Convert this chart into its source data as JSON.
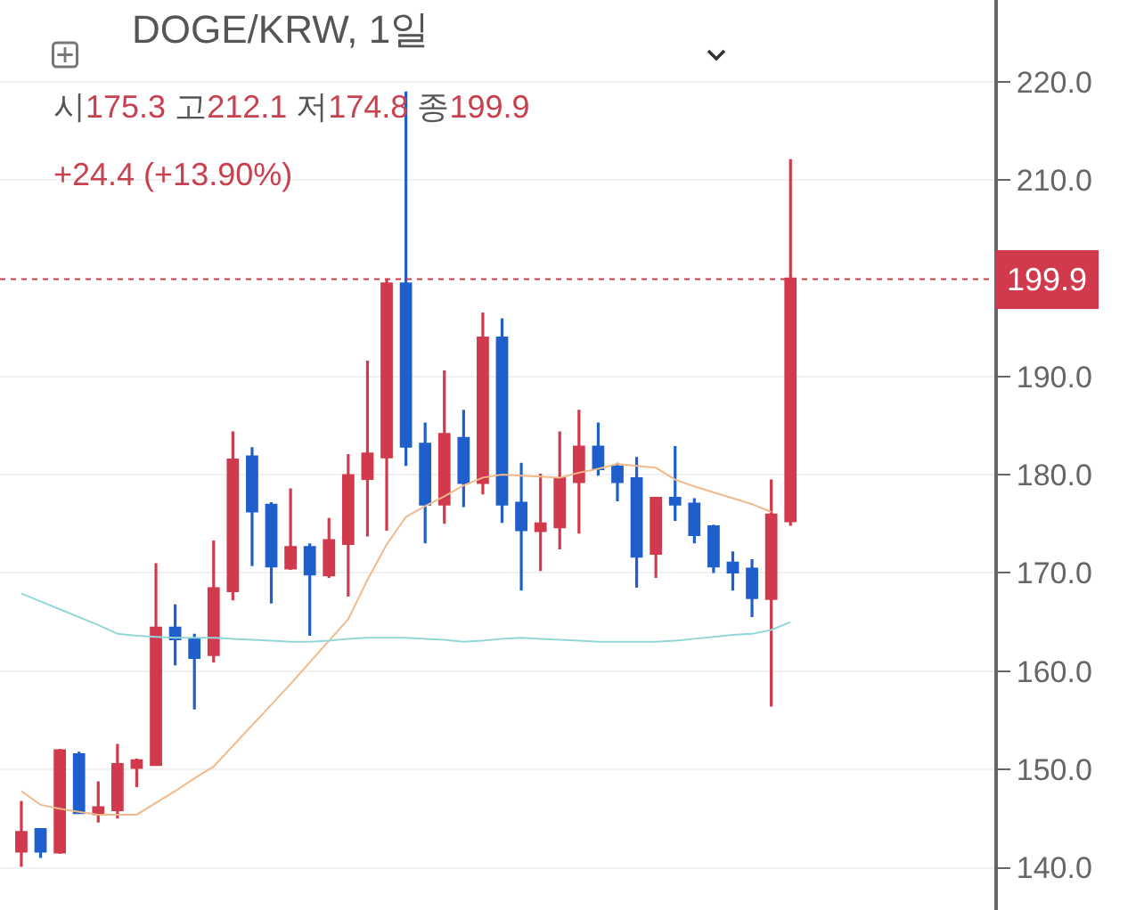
{
  "chart_data": {
    "type": "candlestick",
    "title": "DOGE/KRW, 1일",
    "annotations": [
      "시175.3 고212.1 저174.8 종199.9",
      "+24.4 (+13.90%)"
    ],
    "categories": [
      null,
      null,
      null,
      null,
      null,
      null,
      null,
      null,
      null,
      null,
      null,
      null,
      null,
      null,
      null,
      null,
      null,
      null,
      null,
      null,
      null,
      null,
      null,
      null,
      null,
      null,
      null,
      null,
      null,
      null,
      null,
      null,
      null,
      null,
      null,
      null,
      null,
      null,
      null,
      null,
      null
    ],
    "ohlc": [
      [
        141.7,
        146.8,
        140.1,
        143.6
      ],
      [
        143.9,
        144.0,
        141.0,
        141.7
      ],
      [
        141.6,
        152.1,
        141.4,
        151.9
      ],
      [
        151.5,
        151.8,
        145.6,
        145.6
      ],
      [
        145.5,
        148.8,
        144.6,
        146.1
      ],
      [
        145.9,
        152.6,
        145.0,
        150.5
      ],
      [
        150.2,
        151.1,
        148.2,
        150.9
      ],
      [
        150.5,
        171.0,
        150.5,
        164.4
      ],
      [
        164.4,
        166.8,
        160.6,
        163.3
      ],
      [
        163.2,
        163.8,
        156.1,
        161.4
      ],
      [
        161.7,
        173.3,
        160.9,
        168.4
      ],
      [
        168.2,
        184.4,
        167.2,
        181.5
      ],
      [
        181.8,
        182.8,
        170.7,
        176.3
      ],
      [
        176.9,
        177.2,
        166.9,
        170.7
      ],
      [
        170.5,
        178.6,
        170.3,
        172.6
      ],
      [
        172.6,
        173.0,
        163.6,
        169.9
      ],
      [
        169.8,
        175.6,
        169.5,
        173.3
      ],
      [
        173.0,
        182.1,
        167.6,
        179.9
      ],
      [
        179.6,
        191.6,
        173.7,
        182.1
      ],
      [
        181.8,
        199.9,
        174.3,
        199.4
      ],
      [
        199.4,
        219.0,
        180.9,
        182.9
      ],
      [
        183.1,
        185.3,
        173.0,
        177.0
      ],
      [
        177.0,
        190.6,
        175.0,
        184.1
      ],
      [
        183.7,
        186.6,
        176.7,
        179.2
      ],
      [
        179.2,
        196.5,
        178.0,
        193.9
      ],
      [
        193.9,
        195.9,
        175.1,
        177.0
      ],
      [
        177.1,
        181.2,
        168.2,
        174.4
      ],
      [
        174.3,
        180.1,
        170.2,
        175.0
      ],
      [
        174.7,
        184.4,
        172.4,
        179.6
      ],
      [
        179.3,
        186.6,
        174.0,
        182.8
      ],
      [
        182.8,
        185.3,
        179.9,
        180.6
      ],
      [
        180.8,
        181.2,
        177.3,
        179.3
      ],
      [
        179.6,
        181.8,
        168.5,
        171.7
      ],
      [
        172.0,
        177.6,
        169.5,
        177.6
      ],
      [
        177.6,
        182.9,
        175.3,
        177.0
      ],
      [
        177.0,
        177.6,
        173.0,
        173.9
      ],
      [
        174.7,
        174.9,
        170.0,
        170.7
      ],
      [
        171.0,
        172.2,
        168.2,
        170.1
      ],
      [
        170.4,
        171.4,
        165.5,
        167.5
      ],
      [
        167.4,
        179.5,
        156.4,
        175.9
      ],
      [
        175.3,
        212.1,
        174.8,
        199.9
      ]
    ],
    "colors": [
      "#d13a4d",
      "#1f5fcc",
      "#d13a4d",
      "#1f5fcc",
      "#d13a4d",
      "#d13a4d",
      "#d13a4d",
      "#d13a4d",
      "#1f5fcc",
      "#1f5fcc",
      "#d13a4d",
      "#d13a4d",
      "#1f5fcc",
      "#1f5fcc",
      "#d13a4d",
      "#1f5fcc",
      "#d13a4d",
      "#d13a4d",
      "#d13a4d",
      "#d13a4d",
      "#1f5fcc",
      "#1f5fcc",
      "#d13a4d",
      "#1f5fcc",
      "#d13a4d",
      "#1f5fcc",
      "#1f5fcc",
      "#d13a4d",
      "#d13a4d",
      "#d13a4d",
      "#1f5fcc",
      "#1f5fcc",
      "#1f5fcc",
      "#d13a4d",
      "#1f5fcc",
      "#1f5fcc",
      "#1f5fcc",
      "#1f5fcc",
      "#1f5fcc",
      "#d13a4d",
      "#d13a4d"
    ],
    "series": [
      {
        "type": "line",
        "color": "#f2b98a",
        "values": [
          147.8,
          146.4,
          146.0,
          145.7,
          145.4,
          145.4,
          145.4,
          146.6,
          147.8,
          149.1,
          150.3,
          152.4,
          154.5,
          156.6,
          158.7,
          160.9,
          163.1,
          165.3,
          169.3,
          172.9,
          175.7,
          176.8,
          177.8,
          178.9,
          179.7,
          180.0,
          179.9,
          179.8,
          179.7,
          180.2,
          180.6,
          181.1,
          180.9,
          180.7,
          179.5,
          178.8,
          178.2,
          177.6,
          177.0,
          176.2,
          null
        ]
      },
      {
        "type": "line",
        "color": "#93d6d8",
        "values": [
          167.9,
          167.1,
          166.3,
          165.5,
          164.7,
          163.8,
          163.6,
          163.5,
          163.4,
          163.4,
          163.4,
          163.3,
          163.2,
          163.1,
          163.0,
          163.0,
          163.1,
          163.3,
          163.4,
          163.4,
          163.4,
          163.3,
          163.2,
          163.0,
          163.1,
          163.3,
          163.4,
          163.3,
          163.2,
          163.1,
          163.0,
          163.0,
          163.0,
          163.0,
          163.1,
          163.3,
          163.5,
          163.7,
          163.8,
          164.2,
          165.0
        ]
      }
    ],
    "ylim": [
      135.7,
      228.3
    ],
    "yticks": [
      {
        "value": 140,
        "label": "140.0"
      },
      {
        "value": 150,
        "label": "150.0"
      },
      {
        "value": 160,
        "label": "160.0"
      },
      {
        "value": 170,
        "label": "170.0"
      },
      {
        "value": 180,
        "label": "180.0"
      },
      {
        "value": 190,
        "label": "190.0"
      },
      {
        "value": 210,
        "label": "210.0"
      },
      {
        "value": 220,
        "label": "220.0"
      }
    ],
    "ref_lines": [
      {
        "axis": "y",
        "value": 199.9,
        "label": "199.9",
        "color": "#d13a4d",
        "line_style": "dotted"
      }
    ],
    "grid": "y"
  }
}
